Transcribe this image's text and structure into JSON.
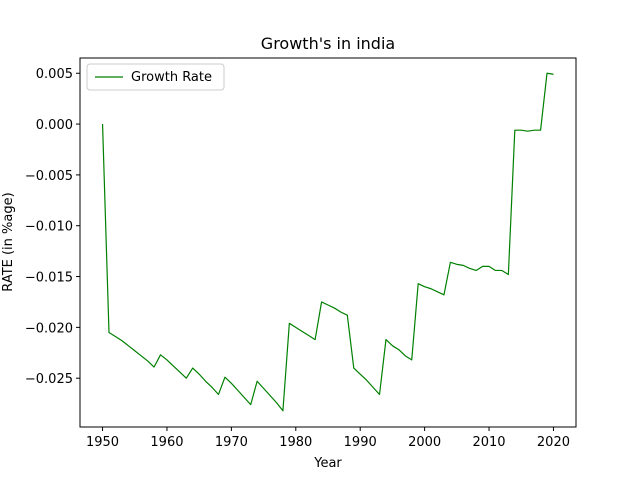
{
  "chart_data": {
    "type": "line",
    "title": "Growth's in india",
    "xlabel": "Year",
    "ylabel": "RATE (in %age)",
    "xlim": [
      1946.5,
      2023.5
    ],
    "ylim": [
      -0.0298,
      0.0065
    ],
    "xticks": [
      1950,
      1960,
      1970,
      1980,
      1990,
      2000,
      2010,
      2020
    ],
    "yticks": [
      0.005,
      0.0,
      -0.005,
      -0.01,
      -0.015,
      -0.02,
      -0.025
    ],
    "ytick_labels": [
      "0.005",
      "0.000",
      "−0.005",
      "−0.010",
      "−0.015",
      "−0.020",
      "−0.025"
    ],
    "legend": "upper-left",
    "grid": false,
    "series": [
      {
        "name": "Growth Rate",
        "color": "#008000",
        "x": [
          1950,
          1951,
          1952,
          1953,
          1954,
          1955,
          1956,
          1957,
          1958,
          1959,
          1960,
          1961,
          1962,
          1963,
          1964,
          1965,
          1966,
          1967,
          1968,
          1969,
          1970,
          1971,
          1972,
          1973,
          1974,
          1975,
          1976,
          1977,
          1978,
          1979,
          1980,
          1981,
          1982,
          1983,
          1984,
          1985,
          1986,
          1987,
          1988,
          1989,
          1990,
          1991,
          1992,
          1993,
          1994,
          1995,
          1996,
          1997,
          1998,
          1999,
          2000,
          2001,
          2002,
          2003,
          2004,
          2005,
          2006,
          2007,
          2008,
          2009,
          2010,
          2011,
          2012,
          2013,
          2014,
          2015,
          2016,
          2017,
          2018,
          2019,
          2020
        ],
        "y": [
          0.0,
          -0.0205,
          -0.0209,
          -0.0213,
          -0.0218,
          -0.0223,
          -0.0228,
          -0.0233,
          -0.0239,
          -0.0227,
          -0.0232,
          -0.0238,
          -0.0244,
          -0.025,
          -0.024,
          -0.0246,
          -0.0253,
          -0.0259,
          -0.0266,
          -0.0249,
          -0.0255,
          -0.0262,
          -0.0269,
          -0.0276,
          -0.0253,
          -0.026,
          -0.0267,
          -0.0274,
          -0.0282,
          -0.0196,
          -0.02,
          -0.0204,
          -0.0208,
          -0.0212,
          -0.0175,
          -0.0178,
          -0.0181,
          -0.0185,
          -0.0188,
          -0.024,
          -0.0246,
          -0.0252,
          -0.0259,
          -0.0266,
          -0.0212,
          -0.0218,
          -0.0222,
          -0.0228,
          -0.0232,
          -0.0157,
          -0.016,
          -0.0162,
          -0.0165,
          -0.0168,
          -0.0136,
          -0.0138,
          -0.0139,
          -0.0142,
          -0.0144,
          -0.014,
          -0.014,
          -0.0144,
          -0.0144,
          -0.0148,
          -0.0006,
          -0.0006,
          -0.0007,
          -0.0006,
          -0.0006,
          0.005,
          0.0049
        ]
      }
    ]
  }
}
